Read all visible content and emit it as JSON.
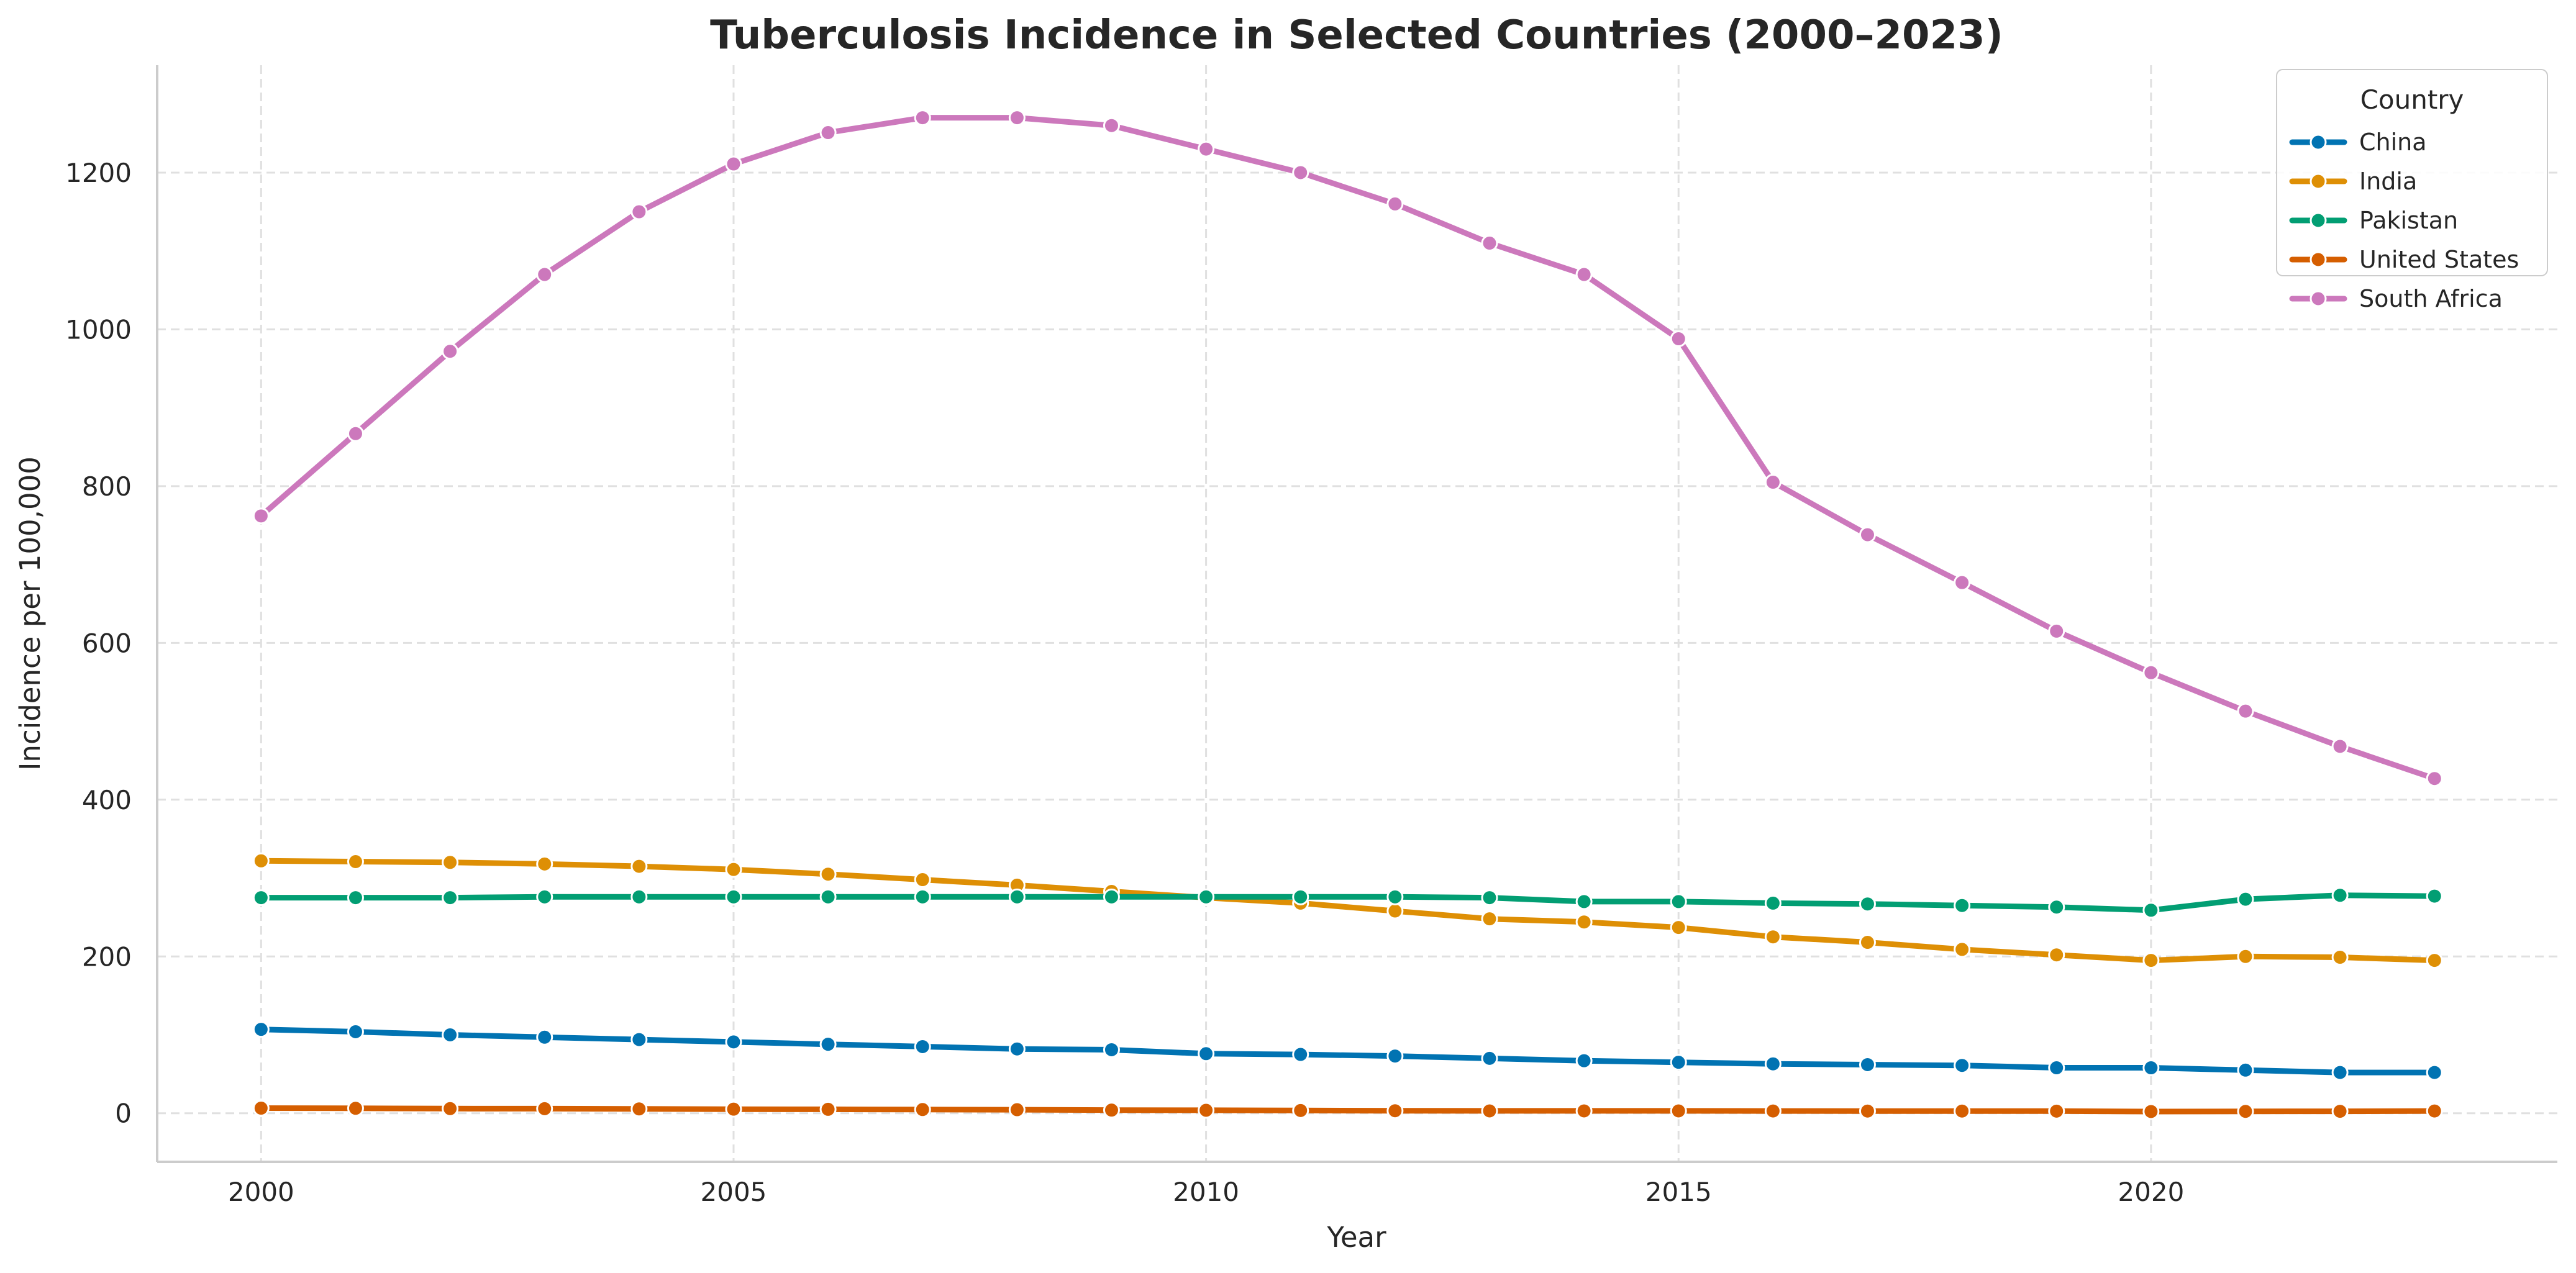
{
  "chart_data": {
    "type": "line",
    "title": "Tuberculosis Incidence in Selected Countries (2000–2023)",
    "xlabel": "Year",
    "ylabel": "Incidence per 100,000",
    "xlim": [
      1998.9,
      2024.3
    ],
    "ylim": [
      -62,
      1337
    ],
    "x_ticks": [
      2000,
      2005,
      2010,
      2015,
      2020
    ],
    "y_ticks": [
      0,
      200,
      400,
      600,
      800,
      1000,
      1200
    ],
    "grid": true,
    "legend": {
      "title": "Country",
      "placement": "top-right"
    },
    "x": [
      2000,
      2001,
      2002,
      2003,
      2004,
      2005,
      2006,
      2007,
      2008,
      2009,
      2010,
      2011,
      2012,
      2013,
      2014,
      2015,
      2016,
      2017,
      2018,
      2019,
      2020,
      2021,
      2022,
      2023
    ],
    "series": [
      {
        "name": "China",
        "color": "#0173b2",
        "values": [
          107,
          104,
          100,
          97,
          94,
          91,
          88,
          85,
          82,
          81,
          76,
          75,
          73,
          70,
          67,
          65,
          63,
          62,
          61,
          58,
          58,
          55,
          52,
          52
        ]
      },
      {
        "name": "India",
        "color": "#de8f05",
        "values": [
          322,
          321,
          320,
          318,
          315,
          311,
          305,
          298,
          291,
          283,
          275,
          268,
          258,
          248,
          244,
          237,
          225,
          218,
          209,
          202,
          195,
          200,
          199,
          195
        ]
      },
      {
        "name": "Pakistan",
        "color": "#029e73",
        "values": [
          275,
          275,
          275,
          276,
          276,
          276,
          276,
          276,
          276,
          276,
          276,
          276,
          276,
          275,
          270,
          270,
          268,
          267,
          265,
          263,
          259,
          273,
          278,
          277
        ]
      },
      {
        "name": "United States",
        "color": "#d55e00",
        "values": [
          6.5,
          6.3,
          5.9,
          5.8,
          5.5,
          5.2,
          5.0,
          4.7,
          4.5,
          4.0,
          3.8,
          3.5,
          3.2,
          3.0,
          3.0,
          3.0,
          2.9,
          2.8,
          2.8,
          2.7,
          2.2,
          2.4,
          2.5,
          2.9
        ]
      },
      {
        "name": "South Africa",
        "color": "#cc78bc",
        "values": [
          762,
          867,
          972,
          1070,
          1150,
          1211,
          1251,
          1270,
          1270,
          1260,
          1230,
          1200,
          1160,
          1110,
          1070,
          988,
          805,
          738,
          677,
          615,
          562,
          513,
          468,
          427
        ]
      }
    ]
  }
}
